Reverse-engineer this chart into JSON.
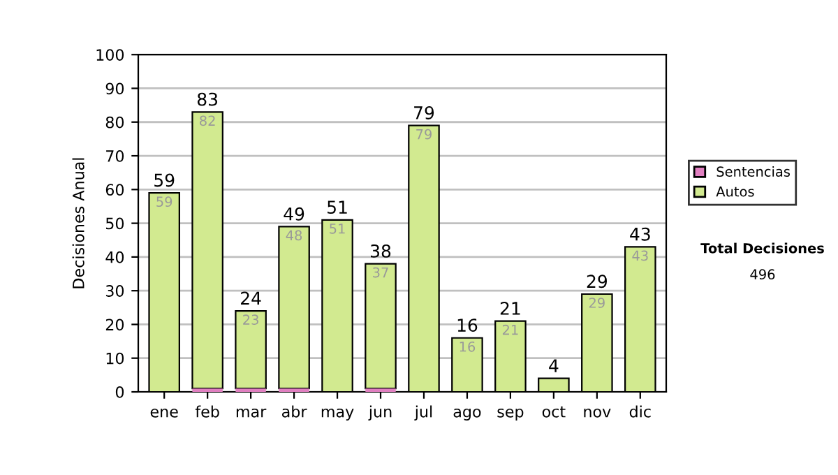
{
  "chart_data": {
    "type": "bar",
    "stacked": true,
    "ylabel": "Decisiones Anual",
    "categories": [
      "ene",
      "feb",
      "mar",
      "abr",
      "may",
      "jun",
      "jul",
      "ago",
      "sep",
      "oct",
      "nov",
      "dic"
    ],
    "series": [
      {
        "name": "Sentencias",
        "color": "#e07fc0",
        "values": [
          0,
          1,
          1,
          1,
          0,
          1,
          0,
          0,
          0,
          0,
          0,
          0
        ]
      },
      {
        "name": "Autos",
        "color": "#d2ea90",
        "values": [
          59,
          82,
          23,
          48,
          51,
          37,
          79,
          16,
          21,
          4,
          29,
          43
        ],
        "value_labels": [
          "59",
          "82",
          "23",
          "48",
          "51",
          "37",
          "79",
          "16",
          "21",
          null,
          "29",
          "43"
        ]
      }
    ],
    "totals": [
      "59",
      "83",
      "24",
      "49",
      "51",
      "38",
      "79",
      "16",
      "21",
      "4",
      "29",
      "43"
    ],
    "ylim": [
      0,
      100
    ],
    "yticks": [
      0,
      10,
      20,
      30,
      40,
      50,
      60,
      70,
      80,
      90,
      100
    ],
    "grid": "y",
    "legend": "right",
    "annotations": [
      "Total Decisiones",
      "496"
    ]
  }
}
